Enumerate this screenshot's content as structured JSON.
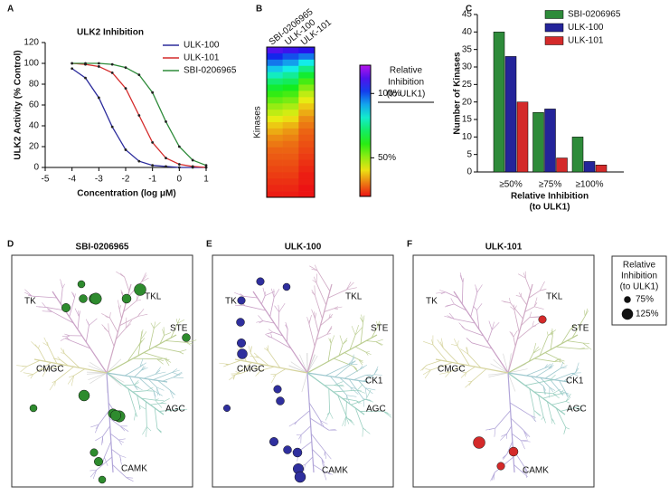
{
  "panel_letters": [
    "A",
    "B",
    "C",
    "D",
    "E",
    "F"
  ],
  "chart_data": [
    {
      "type": "line",
      "title": "ULK2 Inhibition",
      "xlabel": "Concentration (log μM)",
      "ylabel": "ULK2 Activity (% Control)",
      "x": [
        -4,
        -3.5,
        -3,
        -2.5,
        -2,
        -1.5,
        -1,
        -0.5,
        0,
        0.5,
        1
      ],
      "series": [
        {
          "name": "ULK-100",
          "color": "#2b2b9c",
          "values": [
            95,
            86,
            67,
            39,
            17,
            6,
            2,
            1,
            0,
            0,
            0
          ]
        },
        {
          "name": "ULK-101",
          "color": "#d42a2a",
          "values": [
            100,
            99,
            97,
            91,
            76,
            50,
            24,
            9,
            3,
            1,
            0
          ]
        },
        {
          "name": "SBI-0206965",
          "color": "#2e8b3a",
          "values": [
            100,
            100,
            100,
            99,
            96,
            89,
            72,
            44,
            20,
            7,
            2
          ]
        }
      ],
      "xlim": [
        -5,
        1
      ],
      "xticks": [
        -5,
        -4,
        -3,
        -2,
        -1,
        0,
        1
      ],
      "ylim": [
        0,
        120
      ],
      "yticks": [
        0,
        20,
        40,
        60,
        80,
        100,
        120
      ]
    },
    {
      "type": "heatmap",
      "ylabel": "Kinases",
      "columns": [
        "SBI-0206965",
        "ULK-100",
        "ULK-101"
      ],
      "values": [
        [
          112,
          110,
          108
        ],
        [
          104,
          100,
          96
        ],
        [
          96,
          92,
          84
        ],
        [
          88,
          84,
          74
        ],
        [
          80,
          76,
          66
        ],
        [
          72,
          70,
          58
        ],
        [
          66,
          64,
          52
        ],
        [
          60,
          58,
          46
        ],
        [
          55,
          53,
          42
        ],
        [
          50,
          48,
          38
        ],
        [
          46,
          44,
          35
        ],
        [
          42,
          40,
          32
        ],
        [
          38,
          36,
          30
        ],
        [
          35,
          33,
          28
        ],
        [
          32,
          31,
          27
        ],
        [
          30,
          29,
          26
        ],
        [
          28,
          28,
          25
        ],
        [
          27,
          27,
          24
        ],
        [
          26,
          26,
          23
        ],
        [
          25,
          25,
          22
        ],
        [
          24,
          24,
          21
        ],
        [
          23,
          23,
          21
        ],
        [
          22,
          22,
          20
        ],
        [
          21,
          21,
          20
        ]
      ],
      "colorbar": {
        "title": [
          "Relative",
          "Inhibition",
          "(to ULK1)"
        ],
        "lim": [
          20,
          122
        ],
        "ticks": [
          {
            "value": 50,
            "label": "50%"
          },
          {
            "value": 100,
            "label": "100%"
          }
        ]
      }
    },
    {
      "type": "bar",
      "ylabel": "Number of Kinases",
      "xlabel": [
        "Relative Inhibition",
        "(to ULK1)"
      ],
      "categories": [
        "≥50%",
        "≥75%",
        "≥100%"
      ],
      "series": [
        {
          "name": "SBI-0206965",
          "color": "#2e8b3a",
          "values": [
            40,
            17,
            10
          ]
        },
        {
          "name": "ULK-100",
          "color": "#24249a",
          "values": [
            33,
            18,
            3
          ]
        },
        {
          "name": "ULK-101",
          "color": "#d42a2a",
          "values": [
            20,
            4,
            2
          ]
        }
      ],
      "ylim": [
        0,
        45
      ],
      "yticks": [
        0,
        5,
        10,
        15,
        20,
        25,
        30,
        35,
        40,
        45
      ]
    },
    {
      "type": "kinome",
      "title": "SBI-0206965",
      "color": "#2e8b2e",
      "groups": [
        "TK",
        "TKL",
        "STE",
        "AGC",
        "CAMK",
        "CMGC"
      ],
      "values": [
        80,
        90,
        110,
        125,
        130,
        100,
        95,
        90,
        120,
        80,
        105,
        125,
        115,
        85,
        95,
        80
      ]
    },
    {
      "type": "kinome",
      "title": "ULK-100",
      "color": "#2f2f9e",
      "groups": [
        "TK",
        "TKL",
        "STE",
        "CK1",
        "AGC",
        "CAMK",
        "CMGC"
      ],
      "values": [
        85,
        80,
        85,
        90,
        95,
        110,
        85,
        90,
        75,
        95,
        90,
        100,
        115,
        120
      ]
    },
    {
      "type": "kinome",
      "title": "ULK-101",
      "color": "#d42a2a",
      "groups": [
        "TK",
        "TKL",
        "STE",
        "CK1",
        "AGC",
        "CAMK",
        "CMGC"
      ],
      "values": [
        85,
        130,
        100,
        85
      ]
    }
  ],
  "size_legend": {
    "title": [
      "Relative",
      "Inhibition",
      "(to ULK1)"
    ],
    "sizes": [
      {
        "value": 75,
        "label": "75%"
      },
      {
        "value": 125,
        "label": "125%"
      }
    ]
  }
}
